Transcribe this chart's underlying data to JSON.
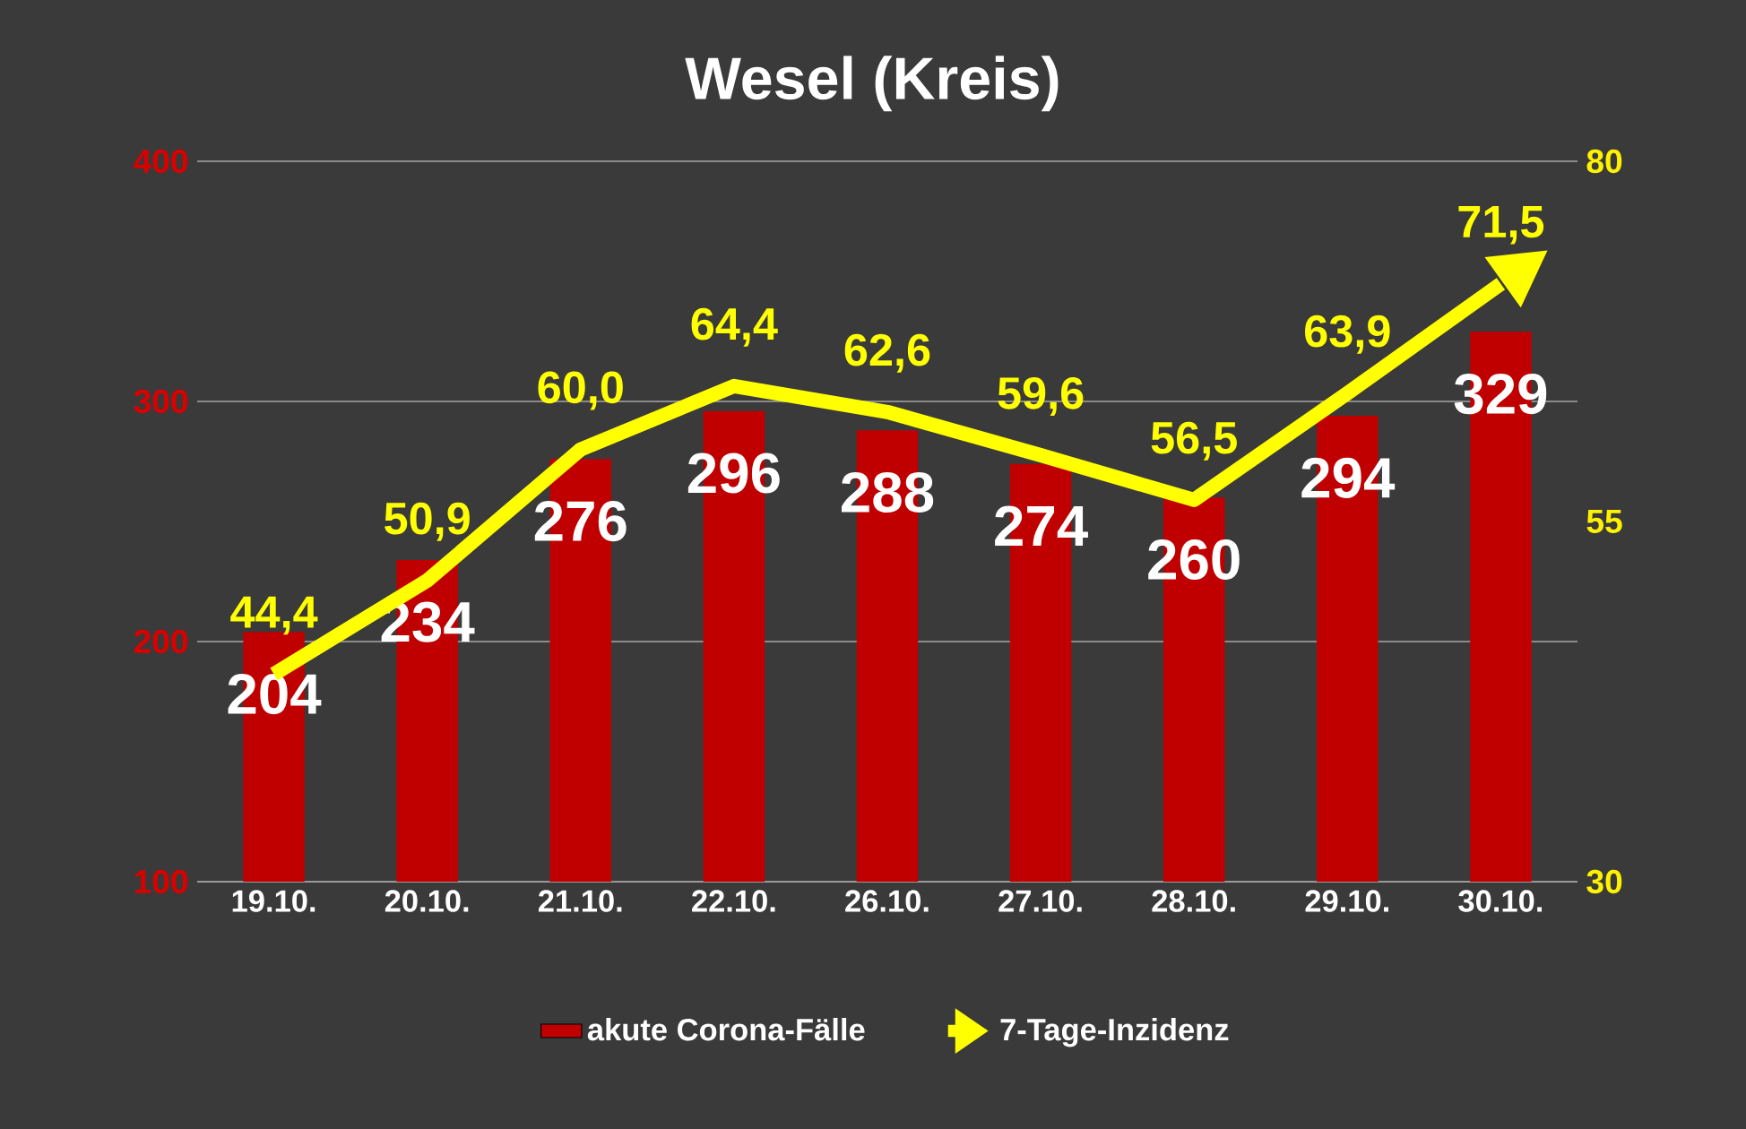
{
  "chart_data": {
    "type": "bar",
    "title": "Wesel (Kreis)",
    "categories": [
      "19.10.",
      "20.10.",
      "21.10.",
      "22.10.",
      "26.10.",
      "27.10.",
      "28.10.",
      "29.10.",
      "30.10."
    ],
    "series": [
      {
        "name": "akute Corona-Fälle",
        "color": "#c00000",
        "values": [
          204,
          234,
          276,
          296,
          288,
          274,
          260,
          294,
          329
        ],
        "value_labels": [
          "204",
          "234",
          "276",
          "296",
          "288",
          "274",
          "260",
          "294",
          "329"
        ]
      },
      {
        "name": "7-Tage-Inzidenz",
        "type": "line",
        "axis": "y2",
        "color": "#ffff00",
        "values": [
          44.4,
          50.9,
          60.0,
          64.4,
          62.6,
          59.6,
          56.5,
          63.9,
          71.5
        ],
        "value_labels": [
          "44,4",
          "50,9",
          "60,0",
          "64,4",
          "62,6",
          "59,6",
          "56,5",
          "63,9",
          "71,5"
        ]
      }
    ],
    "ylim": [
      100,
      400
    ],
    "yticks": [
      100,
      200,
      300,
      400
    ],
    "y2lim": [
      30,
      80
    ],
    "y2ticks": [
      30,
      55,
      80
    ],
    "grid": "y",
    "legend": "bottom"
  }
}
